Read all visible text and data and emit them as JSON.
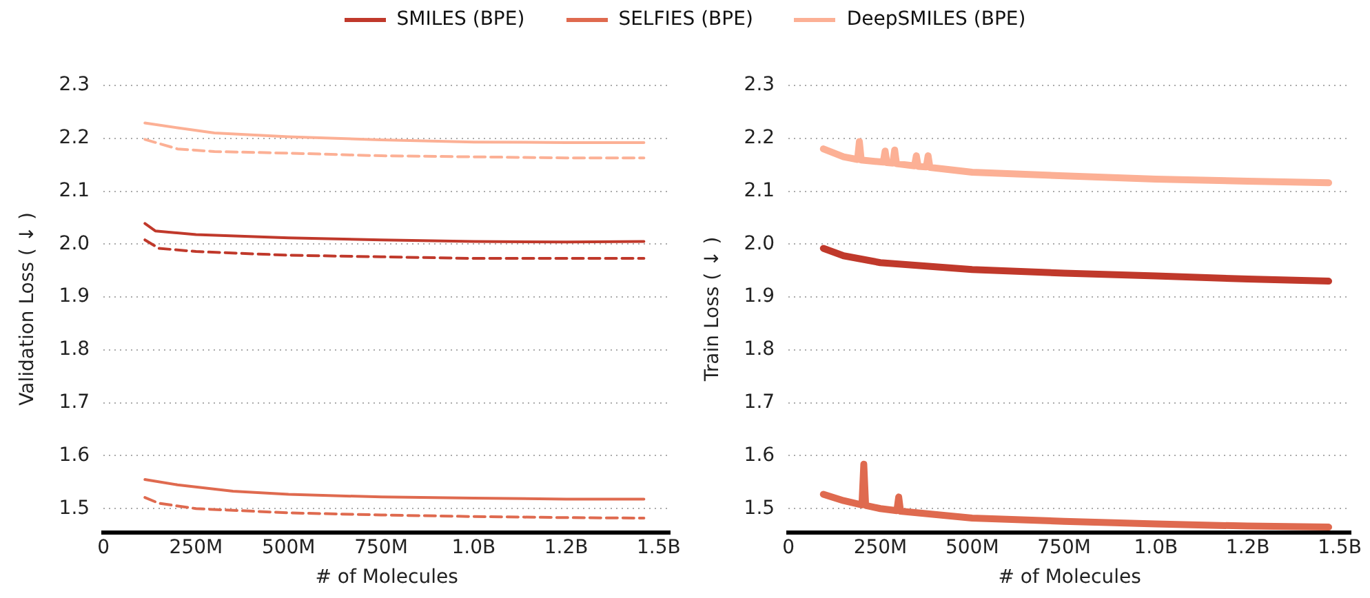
{
  "chart_data": [
    {
      "type": "line",
      "xlabel": "# of Molecules",
      "ylabel": "Validation Loss ( ↓ )",
      "legend": "top",
      "grid": "y",
      "marker": "none",
      "xlim": [
        0,
        1530000000
      ],
      "ylim": [
        1.455,
        2.3
      ],
      "xticks": [
        0,
        {
          "value": 250000000,
          "label": "250M"
        },
        {
          "value": 500000000,
          "label": "500M"
        },
        {
          "value": 750000000,
          "label": "750M"
        },
        {
          "value": 1000000000,
          "label": "1.0B"
        },
        {
          "value": 1250000000,
          "label": "1.2B"
        },
        {
          "value": 1500000000,
          "label": "1.5B"
        }
      ],
      "yticks": [
        1.5,
        1.6,
        1.7,
        1.8,
        1.9,
        {
          "value": 2,
          "label": "2.0"
        },
        2.1,
        2.2,
        2.3
      ],
      "series": [
        {
          "name": "SMILES (BPE)",
          "color": "#c0392b",
          "line_style": "solid",
          "x": [
            112000000,
            140000000,
            250000000,
            500000000,
            750000000,
            1000000000,
            1250000000,
            1460000000
          ],
          "values": [
            2.039,
            2.025,
            2.018,
            2.012,
            2.008,
            2.005,
            2.004,
            2.005
          ]
        },
        {
          "name": "SELFIES (BPE)",
          "color": "#df6a4f",
          "line_style": "solid",
          "x": [
            112000000,
            200000000,
            350000000,
            500000000,
            750000000,
            1000000000,
            1250000000,
            1460000000
          ],
          "values": [
            1.555,
            1.545,
            1.533,
            1.527,
            1.522,
            1.52,
            1.518,
            1.518
          ]
        },
        {
          "name": "DeepSMILES (BPE)",
          "color": "#fcb095",
          "line_style": "solid",
          "x": [
            112000000,
            200000000,
            300000000,
            500000000,
            750000000,
            1000000000,
            1250000000,
            1460000000
          ],
          "values": [
            2.229,
            2.22,
            2.21,
            2.203,
            2.197,
            2.193,
            2.192,
            2.192
          ]
        },
        {
          "color": "#c0392b",
          "line_style": "dashed",
          "x": [
            112000000,
            150000000,
            250000000,
            500000000,
            750000000,
            1000000000,
            1250000000,
            1460000000
          ],
          "values": [
            2.008,
            1.992,
            1.986,
            1.979,
            1.976,
            1.973,
            1.973,
            1.973
          ]
        },
        {
          "color": "#df6a4f",
          "line_style": "dashed",
          "x": [
            112000000,
            150000000,
            250000000,
            500000000,
            750000000,
            1000000000,
            1250000000,
            1460000000
          ],
          "values": [
            1.521,
            1.51,
            1.5,
            1.492,
            1.488,
            1.485,
            1.483,
            1.482
          ]
        },
        {
          "color": "#fcb095",
          "line_style": "dashed",
          "x": [
            112000000,
            200000000,
            300000000,
            500000000,
            750000000,
            1000000000,
            1250000000,
            1460000000
          ],
          "values": [
            2.198,
            2.18,
            2.175,
            2.172,
            2.167,
            2.165,
            2.163,
            2.163
          ]
        }
      ]
    },
    {
      "type": "line",
      "xlabel": "# of Molecules",
      "ylabel": "Train Loss ( ↓ )",
      "grid": "y",
      "marker": "none",
      "xlim": [
        0,
        1530000000
      ],
      "ylim": [
        1.455,
        2.3
      ],
      "xticks": [
        0,
        {
          "value": 250000000,
          "label": "250M"
        },
        {
          "value": 500000000,
          "label": "500M"
        },
        {
          "value": 750000000,
          "label": "750M"
        },
        {
          "value": 1000000000,
          "label": "1.0B"
        },
        {
          "value": 1250000000,
          "label": "1.2B"
        },
        {
          "value": 1500000000,
          "label": "1.5B"
        }
      ],
      "yticks": [
        1.5,
        1.6,
        1.7,
        1.8,
        1.9,
        {
          "value": 2,
          "label": "2.0"
        },
        2.1,
        2.2,
        2.3
      ],
      "series": [
        {
          "color": "#c0392b",
          "line_style": "solid",
          "x": [
            95000000,
            150000000,
            250000000,
            500000000,
            750000000,
            1000000000,
            1250000000,
            1470000000
          ],
          "values": [
            1.992,
            1.978,
            1.965,
            1.952,
            1.945,
            1.94,
            1.934,
            1.93
          ]
        },
        {
          "color": "#df6a4f",
          "line_style": "solid",
          "x": [
            95000000,
            150000000,
            200000000,
            205000000,
            210000000,
            250000000,
            295000000,
            300000000,
            305000000,
            500000000,
            750000000,
            1000000000,
            1250000000,
            1470000000
          ],
          "values": [
            1.527,
            1.515,
            1.507,
            1.584,
            1.506,
            1.5,
            1.496,
            1.522,
            1.495,
            1.482,
            1.476,
            1.471,
            1.467,
            1.465
          ]
        },
        {
          "color": "#fcb095",
          "line_style": "solid",
          "x": [
            95000000,
            150000000,
            188000000,
            193000000,
            198000000,
            258000000,
            263000000,
            268000000,
            284000000,
            289000000,
            294000000,
            343000000,
            348000000,
            353000000,
            375000000,
            380000000,
            385000000,
            500000000,
            750000000,
            1000000000,
            1250000000,
            1470000000
          ],
          "values": [
            2.18,
            2.165,
            2.16,
            2.194,
            2.159,
            2.155,
            2.176,
            2.154,
            2.153,
            2.178,
            2.152,
            2.148,
            2.167,
            2.147,
            2.146,
            2.167,
            2.145,
            2.136,
            2.129,
            2.123,
            2.119,
            2.116
          ]
        }
      ]
    }
  ]
}
